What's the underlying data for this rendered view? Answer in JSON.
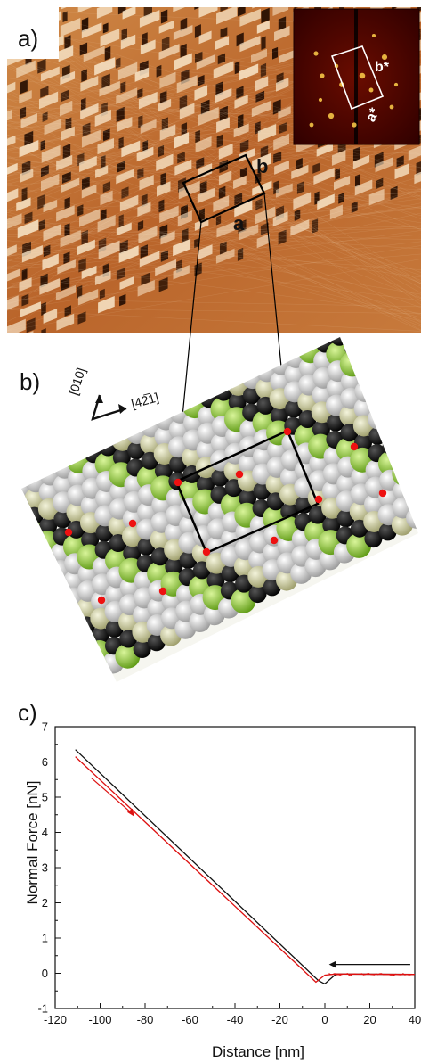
{
  "panels": {
    "a": {
      "label": "a)",
      "unit_cell": {
        "a": "a",
        "b": "b"
      },
      "fft_inset": {
        "a_star": "a*",
        "b_star": "b*"
      },
      "colors": {
        "afm_dark": "#2b1204",
        "afm_mid": "#b9642a",
        "afm_light": "#f6e2c4",
        "fft_bg": "#3a0000"
      }
    },
    "b": {
      "label": "b)",
      "directions": {
        "up": "[010]",
        "right": "[42̅1]"
      },
      "colors": {
        "white_atom": "#e6e6e6",
        "black_atom": "#151515",
        "green_atom": "#8fcd3a",
        "olive_atom": "#d2d2a6",
        "marker": "#ee1111"
      }
    },
    "c": {
      "label": "c)",
      "colors": {
        "approach": "#111111",
        "retract": "#dd1111"
      }
    }
  },
  "chart_data": {
    "type": "line",
    "xlabel": "Distance [nm]",
    "ylabel": "Normal Force [nN]",
    "xlim": [
      -120,
      40
    ],
    "ylim": [
      -1,
      7
    ],
    "xticks": [
      -120,
      -100,
      -80,
      -60,
      -40,
      -20,
      0,
      20,
      40
    ],
    "yticks": [
      -1,
      0,
      1,
      2,
      3,
      4,
      5,
      6,
      7
    ],
    "grid": false,
    "series": [
      {
        "color": "#111111",
        "x": [
          -111,
          -3,
          -1,
          0,
          5,
          40
        ],
        "y": [
          6.35,
          -0.2,
          -0.27,
          -0.3,
          -0.02,
          -0.03
        ]
      },
      {
        "color": "#dd1111",
        "x": [
          -111,
          -4,
          -2,
          0,
          5,
          40
        ],
        "y": [
          6.15,
          -0.25,
          -0.15,
          -0.05,
          -0.02,
          -0.03
        ]
      }
    ]
  }
}
